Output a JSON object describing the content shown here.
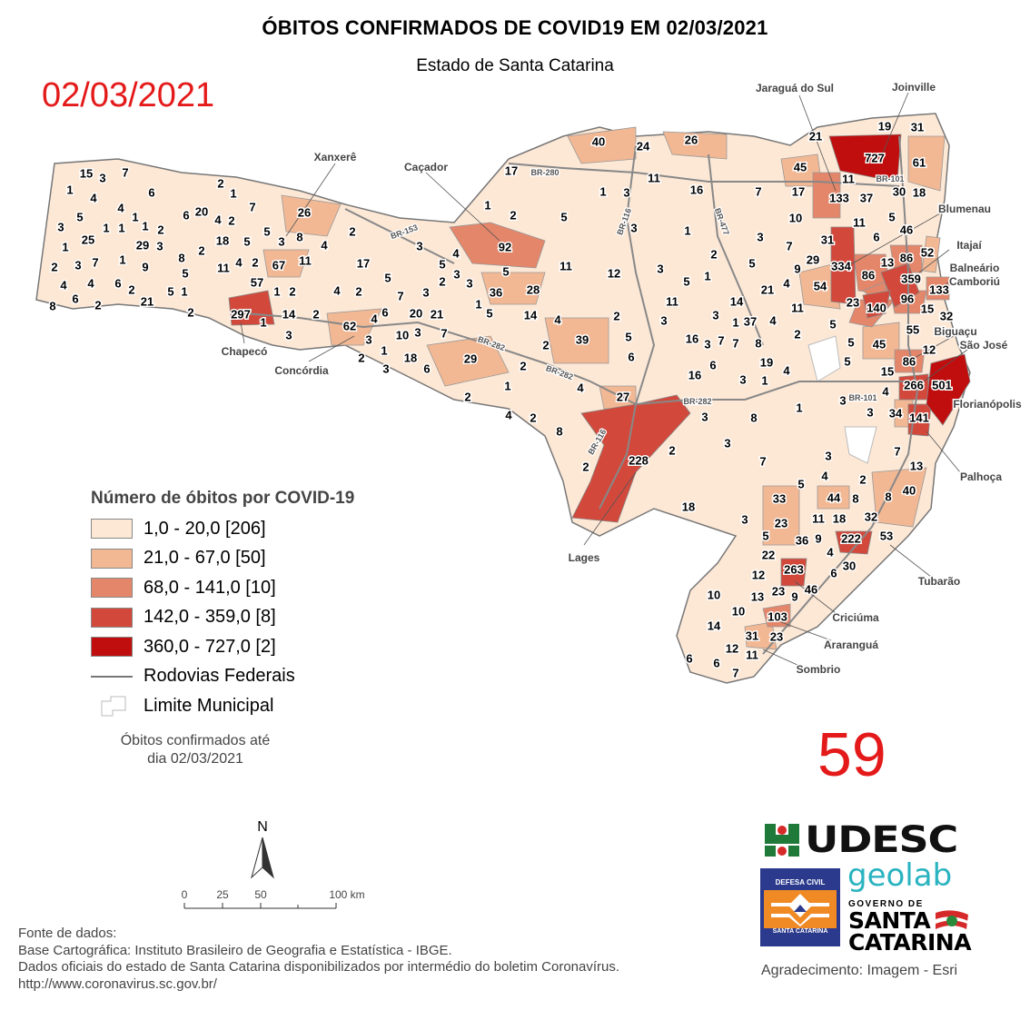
{
  "header": {
    "title": "ÓBITOS CONFIRMADOS DE COVID19 EM 02/03/2021",
    "subtitle": "Estado de Santa Catarina",
    "date_overlay": "02/03/2021",
    "count_overlay": "59"
  },
  "legend": {
    "title": "Número de óbitos por COVID-19",
    "classes": [
      {
        "label": "1,0 - 20,0 [206]",
        "color": "#fde8d6"
      },
      {
        "label": "21,0 - 67,0 [50]",
        "color": "#f2b894"
      },
      {
        "label": "68,0 - 141,0 [10]",
        "color": "#e3866a"
      },
      {
        "label": "142,0 - 359,0 [8]",
        "color": "#d2493c"
      },
      {
        "label": "360,0 - 727,0 [2]",
        "color": "#c00e0e"
      }
    ],
    "roads_label": "Rodovias Federais",
    "limits_label": "Limite Municipal",
    "note_line1": "Óbitos confirmados até",
    "note_line2": "dia 02/03/2021"
  },
  "map": {
    "municipality_values": [
      15,
      3,
      7,
      1,
      4,
      6,
      2,
      1,
      4,
      5,
      3,
      25,
      1,
      1,
      1,
      1,
      2,
      6,
      20,
      4,
      2,
      7,
      5,
      3,
      8,
      26,
      1,
      3,
      2,
      7,
      1,
      9,
      8,
      2,
      18,
      5,
      4,
      2,
      67,
      11,
      4,
      2,
      17,
      29,
      3,
      5,
      11,
      57,
      4,
      6,
      8,
      4,
      6,
      2,
      21,
      2,
      5,
      1,
      2,
      297,
      1,
      2,
      1,
      4,
      2,
      14,
      2,
      3,
      5,
      7,
      3,
      5,
      4,
      3,
      2,
      3,
      3,
      36,
      28,
      5,
      92,
      1,
      17,
      2,
      5,
      1,
      3,
      11,
      40,
      24,
      26,
      16,
      7,
      17,
      45,
      21,
      11,
      12,
      3,
      5,
      1,
      2,
      5,
      1,
      3,
      10,
      3,
      7,
      9,
      29,
      31,
      54,
      21,
      4,
      14,
      11,
      11,
      37,
      4,
      1,
      3,
      2,
      3,
      14,
      4,
      39,
      5,
      6,
      16,
      3,
      7,
      7,
      8,
      2,
      19,
      4,
      16,
      6,
      3,
      1,
      2,
      2,
      1,
      4,
      29,
      62,
      4,
      6,
      20,
      21,
      1,
      5,
      3,
      10,
      3,
      7,
      2,
      1,
      18,
      6,
      3,
      2,
      4,
      2,
      8,
      27,
      3,
      8,
      1,
      2,
      3,
      7,
      2,
      228,
      18,
      3,
      33,
      5,
      23,
      5,
      22,
      36,
      9,
      4,
      11,
      18,
      44,
      8,
      32,
      2,
      8,
      40,
      3,
      4,
      13,
      7,
      222,
      53,
      30,
      6,
      263,
      12,
      23,
      9,
      46,
      13,
      10,
      10,
      103,
      14,
      31,
      23,
      12,
      11,
      6,
      6,
      7,
      19,
      31,
      727,
      61,
      11,
      133,
      37,
      30,
      18,
      11,
      5,
      46,
      6,
      334,
      86,
      13,
      86,
      52,
      359,
      133,
      96,
      23,
      140,
      15,
      32,
      55,
      12,
      45,
      5,
      5,
      5,
      86,
      15,
      266,
      501,
      4,
      3,
      3,
      34,
      141
    ],
    "place_names": [
      "Joinville",
      "Jaraguá do Sul",
      "Xanxerê",
      "Caçador",
      "Blumenau",
      "Itajaí",
      "Balneário",
      "Camboriú",
      "Biguaçu",
      "São José",
      "Florianópolis",
      "Palhoça",
      "Tubarão",
      "Criciúma",
      "Araranguá",
      "Sombrio",
      "Lages",
      "Chapecó",
      "Concórdia"
    ],
    "road_labels": [
      "BR-280",
      "BR-116",
      "BR-477",
      "BR-153",
      "BR-282",
      "BR-282",
      "BR-282",
      "BR-101",
      "BR-101",
      "BR-116"
    ],
    "north_label": "N",
    "scale_labels": [
      "0",
      "25",
      "50",
      "100 km"
    ]
  },
  "footer": {
    "sources": [
      "Fonte de dados:",
      "Base Cartográfica: Instituto Brasileiro de Geografia e Estatística - IBGE.",
      "Dados oficiais do estado de Santa Catarina disponibilizados por intermédio do boletim Coronavírus.",
      "http://www.coronavirus.sc.gov.br/"
    ],
    "acknowledgement": "Agradecimento: Imagem - Esri",
    "logos": {
      "udesc": "UDESC",
      "defesa_top": "DEFESA CIVIL",
      "defesa_bottom": "SANTA CATARINA",
      "geolab": "geolab",
      "gov_line1": "GOVERNO DE",
      "gov_line2": "SANTA",
      "gov_line3": "CATARINA"
    }
  }
}
